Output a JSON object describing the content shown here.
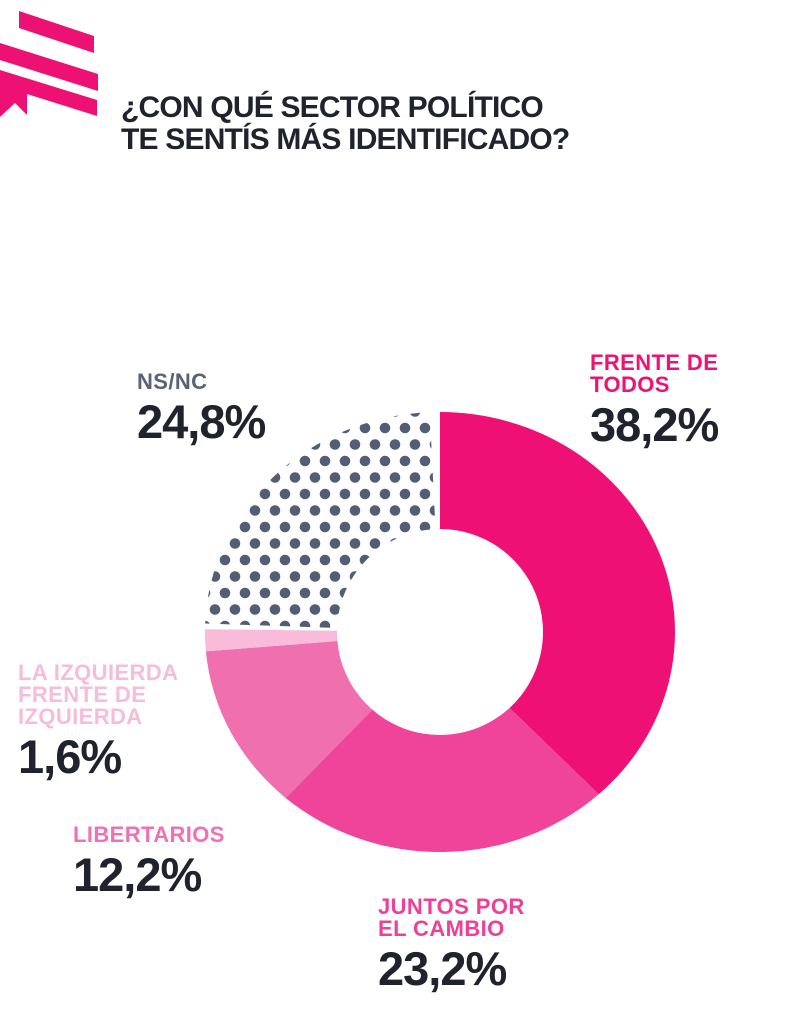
{
  "logo": {
    "name": "filo-flag-logo",
    "color": "#EC1173"
  },
  "title": {
    "lines": [
      "¿CON QUÉ SECTOR POLÍTICO",
      "TE SENTÍS MÁS IDENTIFICADO?"
    ],
    "color": "#20232E"
  },
  "chart_data": {
    "type": "pie",
    "variant": "donut",
    "title": "¿Con qué sector político te sentís más identificado?",
    "units": "%",
    "direction": "clockwise",
    "start_angle_deg": 0,
    "inner_radius_ratio": 0.44,
    "legend_position": "around",
    "categories": [
      "FRENTE DE TODOS",
      "JUNTOS POR EL CAMBIO",
      "LIBERTARIOS",
      "LA IZQUIERDA FRENTE DE IZQUIERDA",
      "NS/NC"
    ],
    "values": [
      38.2,
      23.2,
      12.2,
      1.6,
      24.8
    ],
    "value_text_color": "#20232E",
    "segments": [
      {
        "label": "FRENTE DE TODOS",
        "label_lines": [
          "FRENTE DE",
          "TODOS"
        ],
        "value": 38.2,
        "display": "38,2%",
        "color": "#EF1076",
        "label_color": "#EC1374"
      },
      {
        "label": "JUNTOS POR EL CAMBIO",
        "label_lines": [
          "JUNTOS POR",
          "EL CAMBIO"
        ],
        "value": 23.2,
        "display": "23,2%",
        "color": "#F0439A",
        "label_color": "#EE4097"
      },
      {
        "label": "LIBERTARIOS",
        "label_lines": [
          "LIBERTARIOS"
        ],
        "value": 12.2,
        "display": "12,2%",
        "color": "#F06FAE",
        "label_color": "#F171B0"
      },
      {
        "label": "LA IZQUIERDA FRENTE DE IZQUIERDA",
        "label_lines": [
          "LA IZQUIERDA",
          "FRENTE DE",
          "IZQUIERDA"
        ],
        "value": 1.6,
        "display": "1,6%",
        "color": "#F8BBDA",
        "label_color": "#F6BCDA"
      },
      {
        "label": "NS/NC",
        "label_lines": [
          "NS/NC"
        ],
        "value": 24.8,
        "display": "24,8%",
        "pattern": "dots",
        "pattern_bg": "#FFFFFF",
        "dot_color": "#515E73",
        "color": "#515E73",
        "label_color": "#5B6273"
      }
    ]
  }
}
